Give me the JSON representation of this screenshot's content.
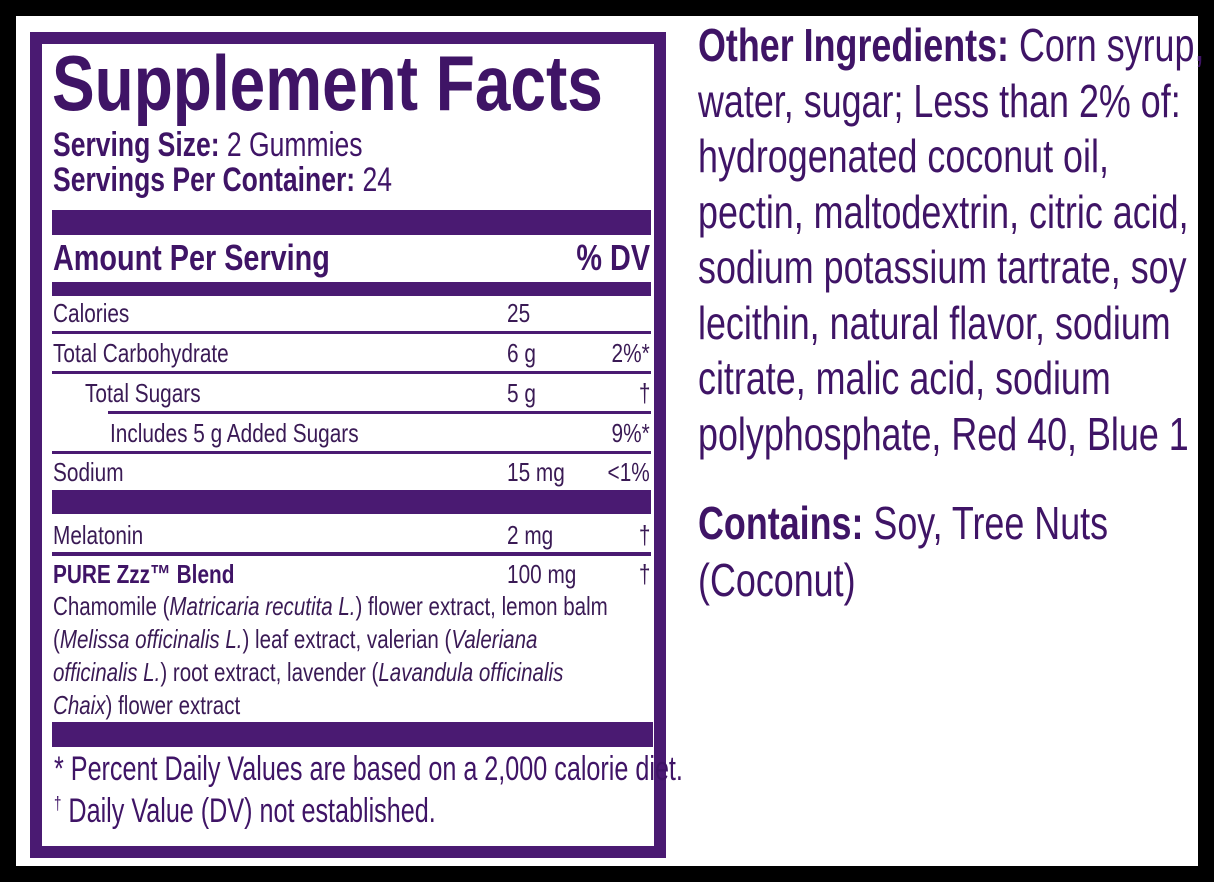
{
  "facts": {
    "title": "Supplement Facts",
    "serving_size_label": "Serving Size:",
    "serving_size_value": "2 Gummies",
    "servings_per_container_label": "Servings Per Container:",
    "servings_per_container_value": "24",
    "amount_header": "Amount Per Serving",
    "dv_header": "% DV",
    "rows": [
      {
        "name": "Calories",
        "amount": "25",
        "dv": ""
      },
      {
        "name": "Total Carbohydrate",
        "amount": "6 g",
        "dv": "2%*"
      },
      {
        "name": "Total Sugars",
        "amount": "5 g",
        "dv": "†"
      },
      {
        "name": "Includes 5 g Added Sugars",
        "amount": "",
        "dv": "9%*"
      },
      {
        "name": "Sodium",
        "amount": "15 mg",
        "dv": "<1%"
      },
      {
        "name": "Melatonin",
        "amount": "2 mg",
        "dv": "†"
      },
      {
        "name": "PURE Zzz™ Blend",
        "amount": "100 mg",
        "dv": "†"
      }
    ],
    "blend_lines": [
      [
        {
          "t": "Chamomile ("
        },
        {
          "t": "Matricaria recutita L.",
          "i": true
        },
        {
          "t": ") flower extract, lemon balm"
        }
      ],
      [
        {
          "t": "("
        },
        {
          "t": "Melissa officinalis L.",
          "i": true
        },
        {
          "t": ") leaf extract, valerian ("
        },
        {
          "t": "Valeriana",
          "i": true
        }
      ],
      [
        {
          "t": "officinalis L.",
          "i": true
        },
        {
          "t": ") root extract, lavender ("
        },
        {
          "t": "Lavandula officinalis",
          "i": true
        }
      ],
      [
        {
          "t": "Chaix",
          "i": true
        },
        {
          "t": ") flower extract"
        }
      ]
    ],
    "footnote_1": "* Percent Daily Values are based on a 2,000 calorie diet.",
    "footnote_2_mark": "†",
    "footnote_2": "Daily Value (DV) not established."
  },
  "other_ingredients": {
    "label": "Other Ingredients:",
    "lines": [
      " Corn syrup,",
      "water, sugar; Less than 2% of:",
      "hydrogenated coconut oil,",
      "pectin, maltodextrin, citric acid,",
      "sodium potassium tartrate, soy",
      "lecithin, natural flavor, sodium",
      "citrate, malic acid, sodium",
      "polyphosphate, Red 40, Blue 1"
    ]
  },
  "contains": {
    "label": "Contains:",
    "lines": [
      " Soy, Tree Nuts",
      "(Coconut)"
    ]
  },
  "colors": {
    "purple": "#4a1a72",
    "text": "#3f1466",
    "background": "#000000"
  }
}
